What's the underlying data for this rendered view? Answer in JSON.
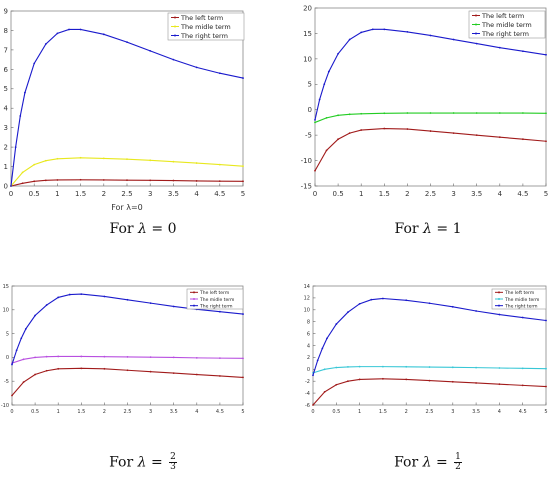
{
  "chart_data": [
    {
      "type": "line",
      "xlim": [
        0,
        5
      ],
      "ylim": [
        0,
        9
      ],
      "xticks": [
        "0",
        "0.5",
        "1",
        "1.5",
        "2",
        "2.5",
        "3",
        "3.5",
        "4",
        "4.5",
        "5"
      ],
      "yticks": [
        "0",
        "1",
        "2",
        "3",
        "4",
        "5",
        "6",
        "7",
        "8",
        "9"
      ],
      "xlabel": "For λ=0",
      "legend": "top-right",
      "grid": false,
      "series": [
        {
          "name": "The left term",
          "color": "#a11b1b",
          "x": [
            0,
            0.25,
            0.5,
            0.75,
            1,
            1.5,
            2,
            2.5,
            3,
            3.5,
            4,
            4.5,
            5
          ],
          "values": [
            0,
            0.14,
            0.24,
            0.29,
            0.31,
            0.32,
            0.31,
            0.3,
            0.29,
            0.28,
            0.26,
            0.25,
            0.24
          ]
        },
        {
          "name": "The midle term",
          "color": "#e8e81e",
          "x": [
            0,
            0.25,
            0.5,
            0.75,
            1,
            1.5,
            2,
            2.5,
            3,
            3.5,
            4,
            4.5,
            5
          ],
          "values": [
            0,
            0.7,
            1.1,
            1.3,
            1.4,
            1.45,
            1.42,
            1.38,
            1.32,
            1.25,
            1.18,
            1.1,
            1.02
          ]
        },
        {
          "name": "The right term",
          "color": "#1a1acc",
          "x": [
            0,
            0.1,
            0.2,
            0.3,
            0.5,
            0.75,
            1,
            1.25,
            1.5,
            2,
            2.5,
            3,
            3.5,
            4,
            4.5,
            5
          ],
          "values": [
            0,
            2.0,
            3.6,
            4.8,
            6.3,
            7.3,
            7.85,
            8.05,
            8.05,
            7.8,
            7.4,
            6.95,
            6.5,
            6.1,
            5.8,
            5.55
          ]
        }
      ]
    },
    {
      "type": "line",
      "xlim": [
        0,
        5
      ],
      "ylim": [
        -15,
        20
      ],
      "xticks": [
        "0",
        "0.5",
        "1",
        "1.5",
        "2",
        "2.5",
        "3",
        "3.5",
        "4",
        "4.5",
        "5"
      ],
      "yticks": [
        "-15",
        "-10",
        "-5",
        "0",
        "5",
        "10",
        "15",
        "20"
      ],
      "legend": "top-right",
      "grid": false,
      "series": [
        {
          "name": "The left term",
          "color": "#a11b1b",
          "x": [
            0,
            0.25,
            0.5,
            0.75,
            1,
            1.5,
            2,
            2.5,
            3,
            3.5,
            4,
            4.5,
            5
          ],
          "values": [
            -12,
            -8,
            -5.8,
            -4.6,
            -4.0,
            -3.7,
            -3.8,
            -4.2,
            -4.6,
            -5.0,
            -5.4,
            -5.8,
            -6.2
          ]
        },
        {
          "name": "The midle term",
          "color": "#22cc22",
          "x": [
            0,
            0.25,
            0.5,
            0.75,
            1,
            1.5,
            2,
            2.5,
            3,
            3.5,
            4,
            4.5,
            5
          ],
          "values": [
            -2.5,
            -1.6,
            -1.1,
            -0.9,
            -0.8,
            -0.7,
            -0.65,
            -0.65,
            -0.65,
            -0.65,
            -0.65,
            -0.65,
            -0.7
          ]
        },
        {
          "name": "The right term",
          "color": "#1a1acc",
          "x": [
            0,
            0.1,
            0.2,
            0.3,
            0.5,
            0.75,
            1,
            1.25,
            1.5,
            2,
            2.5,
            3,
            3.5,
            4,
            4.5,
            5
          ],
          "values": [
            -2,
            2,
            5,
            7.5,
            11,
            13.8,
            15.2,
            15.8,
            15.8,
            15.3,
            14.6,
            13.8,
            13,
            12.2,
            11.5,
            10.8
          ]
        }
      ]
    },
    {
      "type": "line",
      "xlim": [
        0,
        5
      ],
      "ylim": [
        -10,
        15
      ],
      "xticks": [
        "0",
        "0.5",
        "1",
        "1.5",
        "2",
        "2.5",
        "3",
        "3.5",
        "4",
        "4.5",
        "5"
      ],
      "yticks": [
        "-10",
        "-5",
        "0",
        "5",
        "10",
        "15"
      ],
      "legend": "top-right",
      "grid": false,
      "series": [
        {
          "name": "The left term",
          "color": "#a11b1b",
          "x": [
            0,
            0.25,
            0.5,
            0.75,
            1,
            1.5,
            2,
            2.5,
            3,
            3.5,
            4,
            4.5,
            5
          ],
          "values": [
            -8,
            -5.2,
            -3.6,
            -2.8,
            -2.4,
            -2.3,
            -2.4,
            -2.7,
            -3.0,
            -3.3,
            -3.6,
            -3.9,
            -4.2
          ]
        },
        {
          "name": "The midle term",
          "color": "#b84fe0",
          "x": [
            0,
            0.25,
            0.5,
            0.75,
            1,
            1.5,
            2,
            2.5,
            3,
            3.5,
            4,
            4.5,
            5
          ],
          "values": [
            -1.2,
            -0.4,
            0,
            0.15,
            0.2,
            0.2,
            0.15,
            0.1,
            0.05,
            0,
            -0.1,
            -0.15,
            -0.2
          ]
        },
        {
          "name": "The right term",
          "color": "#1a1acc",
          "x": [
            0,
            0.1,
            0.2,
            0.3,
            0.5,
            0.75,
            1,
            1.25,
            1.5,
            2,
            2.5,
            3,
            3.5,
            4,
            4.5,
            5
          ],
          "values": [
            -1.5,
            1.5,
            4,
            6,
            8.8,
            11,
            12.6,
            13.2,
            13.3,
            12.8,
            12.1,
            11.4,
            10.7,
            10.1,
            9.6,
            9.1
          ]
        }
      ]
    },
    {
      "type": "line",
      "xlim": [
        0,
        5
      ],
      "ylim": [
        -6,
        14
      ],
      "xticks": [
        "0",
        "0.5",
        "1",
        "1.5",
        "2",
        "2.5",
        "3",
        "3.5",
        "4",
        "4.5",
        "5"
      ],
      "yticks": [
        "-6",
        "-4",
        "-2",
        "0",
        "2",
        "4",
        "6",
        "8",
        "10",
        "12",
        "14"
      ],
      "legend": "top-right",
      "grid": false,
      "series": [
        {
          "name": "The left term",
          "color": "#a11b1b",
          "x": [
            0,
            0.25,
            0.5,
            0.75,
            1,
            1.5,
            2,
            2.5,
            3,
            3.5,
            4,
            4.5,
            5
          ],
          "values": [
            -6,
            -3.8,
            -2.6,
            -2.0,
            -1.7,
            -1.6,
            -1.7,
            -1.9,
            -2.1,
            -2.3,
            -2.5,
            -2.7,
            -2.9
          ]
        },
        {
          "name": "The midle term",
          "color": "#38c7d6",
          "x": [
            0,
            0.25,
            0.5,
            0.75,
            1,
            1.5,
            2,
            2.5,
            3,
            3.5,
            4,
            4.5,
            5
          ],
          "values": [
            -0.6,
            0,
            0.3,
            0.4,
            0.45,
            0.45,
            0.42,
            0.38,
            0.33,
            0.28,
            0.22,
            0.16,
            0.1
          ]
        },
        {
          "name": "The right term",
          "color": "#1a1acc",
          "x": [
            0,
            0.1,
            0.2,
            0.3,
            0.5,
            0.75,
            1,
            1.25,
            1.5,
            2,
            2.5,
            3,
            3.5,
            4,
            4.5,
            5
          ],
          "values": [
            -1,
            1.5,
            3.5,
            5.2,
            7.6,
            9.6,
            11,
            11.7,
            11.9,
            11.6,
            11.1,
            10.5,
            9.8,
            9.2,
            8.7,
            8.2
          ]
        }
      ]
    }
  ],
  "captions": [
    {
      "prefix": "For ",
      "lambda": "λ",
      "eq": " = ",
      "value": "0"
    },
    {
      "prefix": "For ",
      "lambda": "λ",
      "eq": " = ",
      "value": "1"
    },
    {
      "prefix": "For ",
      "lambda": "λ",
      "eq": " = ",
      "num": "2",
      "den": "3"
    },
    {
      "prefix": "For ",
      "lambda": "λ",
      "eq": " = ",
      "num": "1",
      "den": "2"
    }
  ]
}
